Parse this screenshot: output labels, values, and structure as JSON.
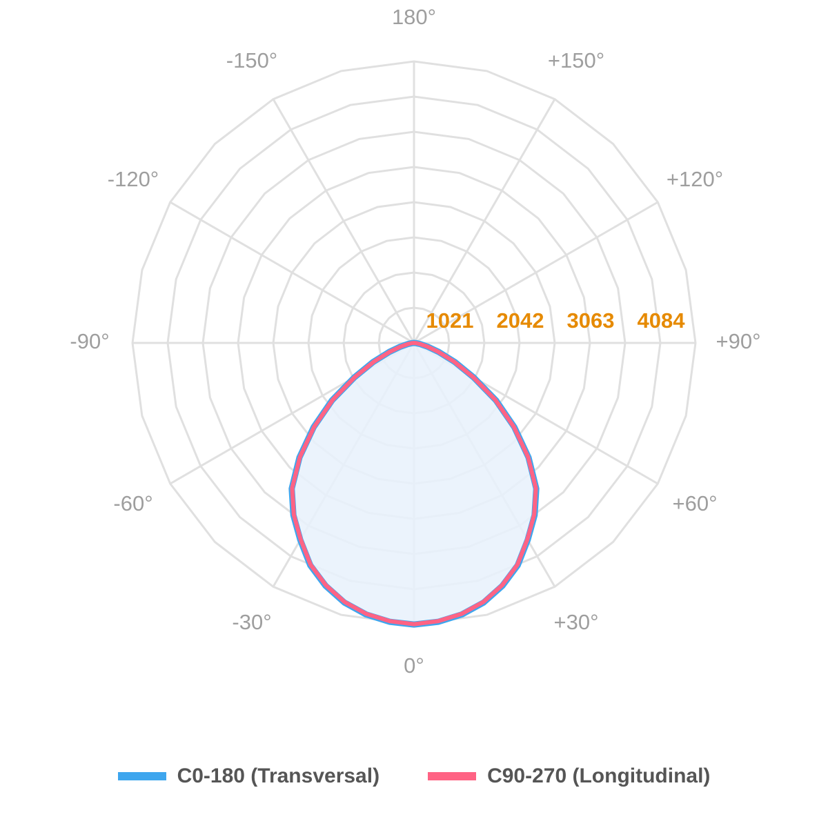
{
  "chart_data": {
    "type": "polar-line",
    "angle_labels": [
      {
        "angle": 0,
        "label": "0°"
      },
      {
        "angle": 30,
        "label": "+30°"
      },
      {
        "angle": 60,
        "label": "+60°"
      },
      {
        "angle": 90,
        "label": "+90°"
      },
      {
        "angle": 120,
        "label": "+120°"
      },
      {
        "angle": 150,
        "label": "+150°"
      },
      {
        "angle": 180,
        "label": "180°"
      },
      {
        "angle": -150,
        "label": "-150°"
      },
      {
        "angle": -120,
        "label": "-120°"
      },
      {
        "angle": -90,
        "label": "-90°"
      },
      {
        "angle": -60,
        "label": "-60°"
      },
      {
        "angle": -30,
        "label": "-30°"
      }
    ],
    "radial_ticks": [
      1021,
      2042,
      3063,
      4084
    ],
    "r_max": 4084,
    "grid_spokes_deg": 30,
    "grid_rings": 8,
    "series": [
      {
        "name": "C0-180 (Transversal)",
        "color": "#3ea6ee",
        "fill": "#e8f1fb",
        "angles": [
          0,
          5,
          10,
          15,
          20,
          25,
          30,
          35,
          40,
          45,
          50,
          55,
          60,
          65,
          70,
          75,
          80,
          85,
          90
        ],
        "values": [
          4085,
          4060,
          4000,
          3900,
          3750,
          3560,
          3300,
          3050,
          2760,
          2350,
          1900,
          1450,
          1000,
          650,
          380,
          200,
          90,
          30,
          0
        ]
      },
      {
        "name": "C90-270 (Longitudinal)",
        "color": "#ff6384",
        "angles": [
          0,
          5,
          10,
          15,
          20,
          25,
          30,
          35,
          40,
          45,
          50,
          55,
          60,
          65,
          70,
          75,
          80,
          85,
          90
        ],
        "values": [
          4080,
          4050,
          3990,
          3890,
          3740,
          3550,
          3290,
          3040,
          2750,
          2340,
          1890,
          1440,
          990,
          640,
          370,
          190,
          85,
          28,
          0
        ]
      }
    ],
    "legend_position": "bottom"
  },
  "legend": {
    "items": [
      {
        "label": "C0-180 (Transversal)",
        "color": "#3ea6ee"
      },
      {
        "label": "C90-270 (Longitudinal)",
        "color": "#ff6384"
      }
    ]
  }
}
